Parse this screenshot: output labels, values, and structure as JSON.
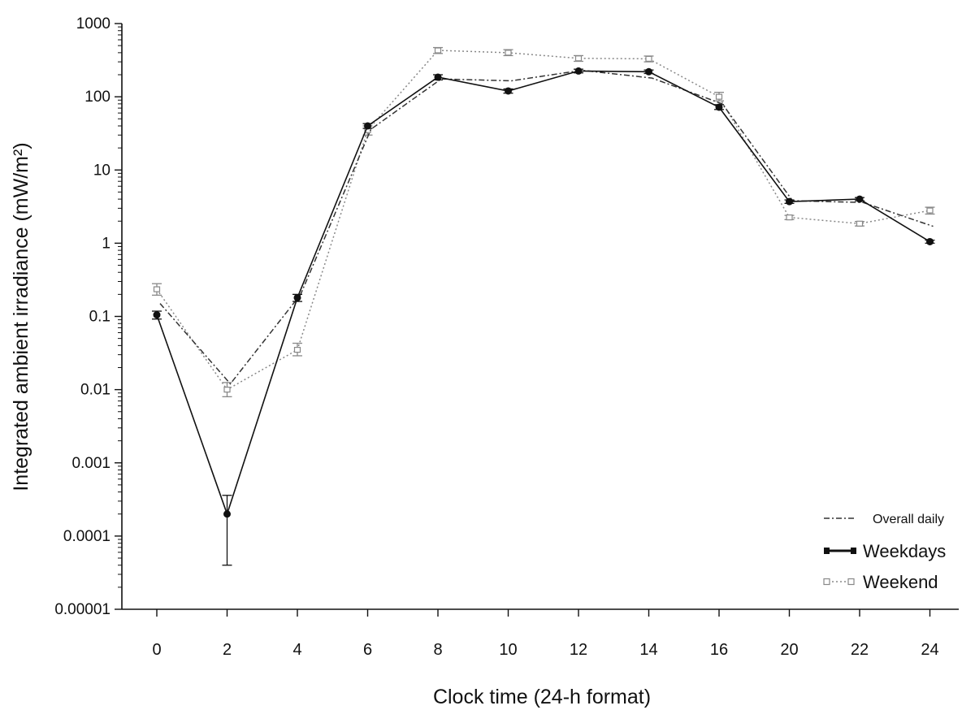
{
  "chart_data": {
    "type": "line",
    "title": "",
    "xlabel": "Clock time (24-h format)",
    "ylabel": "Integrated ambient irradiance (mW/m²)",
    "yscale": "log",
    "ylim": [
      1e-05,
      1000
    ],
    "y_ticks": [
      "1000",
      "100",
      "10",
      "1",
      "0.1",
      "0.01",
      "0.001",
      "0.0001",
      "0.00001"
    ],
    "categories": [
      "0",
      "2",
      "4",
      "6",
      "8",
      "10",
      "12",
      "14",
      "16",
      "20",
      "22",
      "24"
    ],
    "grid": false,
    "legend_position": "bottom-right",
    "series": [
      {
        "name": "Overall daily",
        "style": "dash-dot",
        "color": "#333333",
        "values": [
          0.15,
          0.012,
          0.2,
          36,
          175,
          165,
          230,
          180,
          80,
          3.8,
          3.6,
          1.7
        ]
      },
      {
        "name": "Weekdays",
        "style": "solid",
        "marker": "filled-circle",
        "color": "#111111",
        "values": [
          0.105,
          0.0002,
          0.18,
          40,
          185,
          120,
          225,
          220,
          72,
          3.7,
          4.0,
          1.05
        ],
        "err_low": [
          0.092,
          4e-05,
          0.16,
          37,
          170,
          112,
          212,
          208,
          67,
          3.5,
          3.8,
          1.0
        ],
        "err_high": [
          0.118,
          0.00036,
          0.2,
          43,
          200,
          128,
          238,
          232,
          78,
          3.9,
          4.2,
          1.1
        ]
      },
      {
        "name": "Weekend",
        "style": "dotted",
        "marker": "open-square",
        "color": "#888888",
        "values": [
          0.235,
          0.01,
          0.035,
          35,
          430,
          400,
          335,
          330,
          100,
          2.25,
          1.85,
          2.8
        ],
        "err_low": [
          0.195,
          0.008,
          0.029,
          30,
          390,
          365,
          305,
          300,
          88,
          2.1,
          1.72,
          2.5
        ],
        "err_high": [
          0.28,
          0.0125,
          0.043,
          40,
          470,
          440,
          365,
          360,
          115,
          2.4,
          1.98,
          3.1
        ]
      }
    ]
  }
}
